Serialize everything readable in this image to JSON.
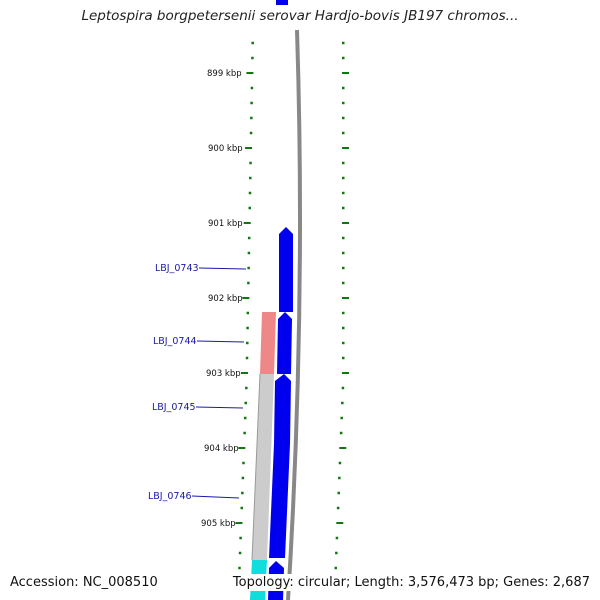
{
  "title": "Leptospira borgpetersenii serovar Hardjo-bovis JB197 chromos...",
  "footer": {
    "accession": "Accession: NC_008510",
    "summary": "Topology: circular; Length: 3,576,473 bp; Genes: 2,687"
  },
  "ticks": [
    "899 kbp",
    "900 kbp",
    "901 kbp",
    "902 kbp",
    "903 kbp",
    "904 kbp",
    "905 kbp"
  ],
  "genes": [
    {
      "name": "LBJ_0743"
    },
    {
      "name": "LBJ_0744"
    },
    {
      "name": "LBJ_0745"
    },
    {
      "name": "LBJ_0746"
    }
  ],
  "colors": {
    "cds": "#0000ee",
    "backbone": "#888888",
    "ticks": "#117711",
    "feature_pink": "#ee8888",
    "feature_gray": "#cccccc",
    "feature_cyan": "#11dddd",
    "gene_label": "#1a1aa8"
  }
}
